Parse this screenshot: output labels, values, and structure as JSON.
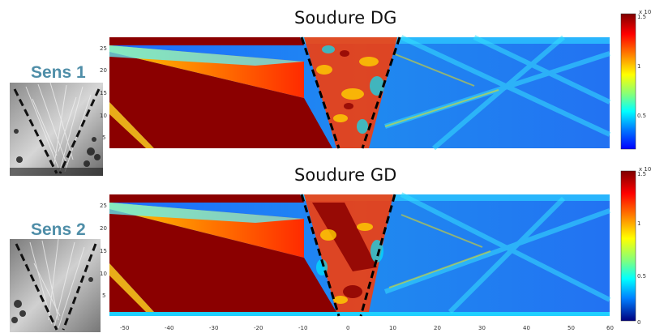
{
  "figure": {
    "sens_labels": [
      "Sens 1",
      "Sens 2"
    ],
    "plots": [
      {
        "title": "Soudure DG",
        "y_ticks": [
          "25",
          "20",
          "15",
          "10",
          "5"
        ],
        "colorbar": {
          "exponent": "x 10-12",
          "ticks": [
            "1.5",
            "1",
            "0.5",
            "0"
          ]
        }
      },
      {
        "title": "Soudure GD",
        "y_ticks": [
          "25",
          "20",
          "15",
          "10",
          "5"
        ],
        "colorbar": {
          "exponent": "x 10-12",
          "ticks": [
            "1.5",
            "1",
            "0.5",
            "0"
          ]
        }
      }
    ],
    "x_ticks": [
      "-50",
      "-40",
      "-30",
      "-20",
      "-10",
      "0",
      "10",
      "20",
      "30",
      "40",
      "50",
      "60"
    ],
    "colormap": [
      "#00007f",
      "#0000ff",
      "#007fff",
      "#00ffff",
      "#7fff7f",
      "#ffff00",
      "#ff7f00",
      "#ff0000",
      "#7f0000"
    ]
  }
}
